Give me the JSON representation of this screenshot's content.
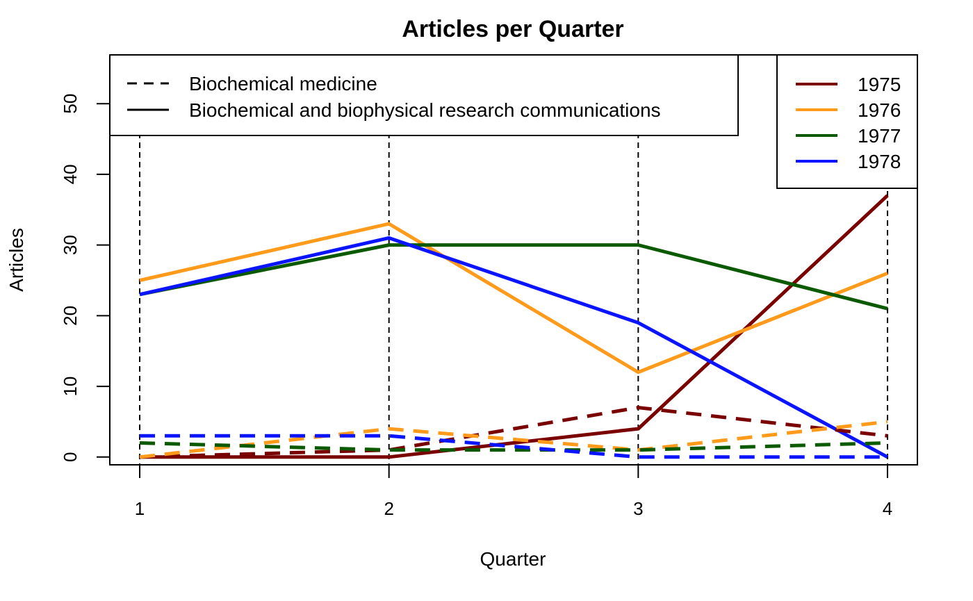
{
  "chart_data": {
    "type": "line",
    "title": "Articles per Quarter",
    "xlabel": "Quarter",
    "ylabel": "Articles",
    "x": [
      1,
      2,
      3,
      4
    ],
    "xlim": [
      0.88,
      4.12
    ],
    "ylim": [
      -1.1,
      56.9
    ],
    "yticks": [
      0,
      10,
      20,
      30,
      40,
      50
    ],
    "xticks": [
      1,
      2,
      3,
      4
    ],
    "grid": "vertical dashed lines at each quarter",
    "line_styles": [
      {
        "label": "Biochemical medicine",
        "dash": "dashed"
      },
      {
        "label": "Biochemical and biophysical research communications",
        "dash": "solid"
      }
    ],
    "years": [
      {
        "label": "1975",
        "color": "#7a0000"
      },
      {
        "label": "1976",
        "color": "#ff9a1a"
      },
      {
        "label": "1977",
        "color": "#0b5a00"
      },
      {
        "label": "1978",
        "color": "#0a14ff"
      }
    ],
    "series": [
      {
        "year": "1975",
        "journal": "Biochemical and biophysical research communications",
        "dash": "solid",
        "color": "#7a0000",
        "values": [
          0,
          0,
          4,
          37
        ]
      },
      {
        "year": "1976",
        "journal": "Biochemical and biophysical research communications",
        "dash": "solid",
        "color": "#ff9a1a",
        "values": [
          25,
          33,
          12,
          26
        ]
      },
      {
        "year": "1977",
        "journal": "Biochemical and biophysical research communications",
        "dash": "solid",
        "color": "#0b5a00",
        "values": [
          23,
          30,
          30,
          21
        ]
      },
      {
        "year": "1978",
        "journal": "Biochemical and biophysical research communications",
        "dash": "solid",
        "color": "#0a14ff",
        "values": [
          23,
          31,
          19,
          0
        ]
      },
      {
        "year": "1975",
        "journal": "Biochemical medicine",
        "dash": "dashed",
        "color": "#7a0000",
        "values": [
          0,
          1,
          7,
          3
        ]
      },
      {
        "year": "1976",
        "journal": "Biochemical medicine",
        "dash": "dashed",
        "color": "#ff9a1a",
        "values": [
          0,
          4,
          1,
          5
        ]
      },
      {
        "year": "1977",
        "journal": "Biochemical medicine",
        "dash": "dashed",
        "color": "#0b5a00",
        "values": [
          2,
          1,
          1,
          2
        ]
      },
      {
        "year": "1978",
        "journal": "Biochemical medicine",
        "dash": "dashed",
        "color": "#0a14ff",
        "values": [
          3,
          3,
          0,
          0
        ]
      }
    ],
    "legend_placement": [
      "top-left",
      "top-right"
    ]
  }
}
